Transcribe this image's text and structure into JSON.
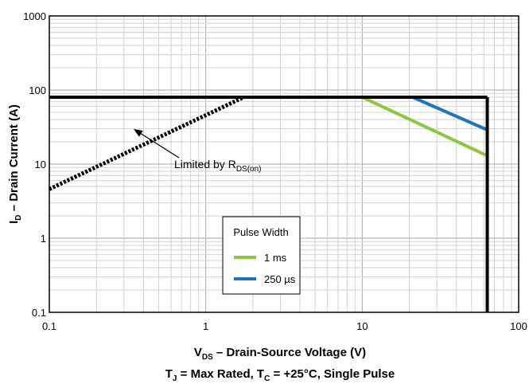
{
  "chart_data": {
    "type": "line",
    "x_scale": "log",
    "y_scale": "log",
    "xlim": [
      0.1,
      100
    ],
    "ylim": [
      0.1,
      1000
    ],
    "x_ticks": [
      "0.1",
      "1",
      "10",
      "100"
    ],
    "y_ticks": [
      "0.1",
      "1",
      "10",
      "100",
      "1000"
    ],
    "grid": true,
    "xlabel": {
      "pre": "V",
      "sub": "DS",
      "post": " – Drain-Source Voltage (V)"
    },
    "ylabel": {
      "pre": "I",
      "sub": "D",
      "post": " – Drain Current (A)"
    },
    "conditions": {
      "t_pre": "T",
      "t_sub": "J",
      "t_mid": " = Max Rated, T",
      "c_sub": "C",
      "t_post": " = +25°C, Single Pulse"
    },
    "annotation": {
      "pre": "Limited by R",
      "sub": "DS(on)"
    },
    "legend": {
      "title": "Pulse Width",
      "placement": "center-bottom"
    },
    "series": [
      {
        "name": "1 ms",
        "color": "#8dc63f",
        "x": [
          10,
          63
        ],
        "y": [
          80,
          13
        ]
      },
      {
        "name": "250 µs",
        "color": "#1f75b9",
        "x": [
          21,
          63
        ],
        "y": [
          80,
          29
        ]
      }
    ],
    "rds_on_limit": {
      "color": "#000000",
      "x": [
        0.1,
        1.75
      ],
      "y": [
        4.6,
        80
      ]
    },
    "current_limit": {
      "color": "#000000",
      "x": [
        0.1,
        63
      ],
      "y": [
        80,
        80
      ]
    },
    "voltage_limit": {
      "color": "#000000",
      "x": [
        63,
        63
      ],
      "y": [
        80,
        0.1
      ]
    }
  }
}
